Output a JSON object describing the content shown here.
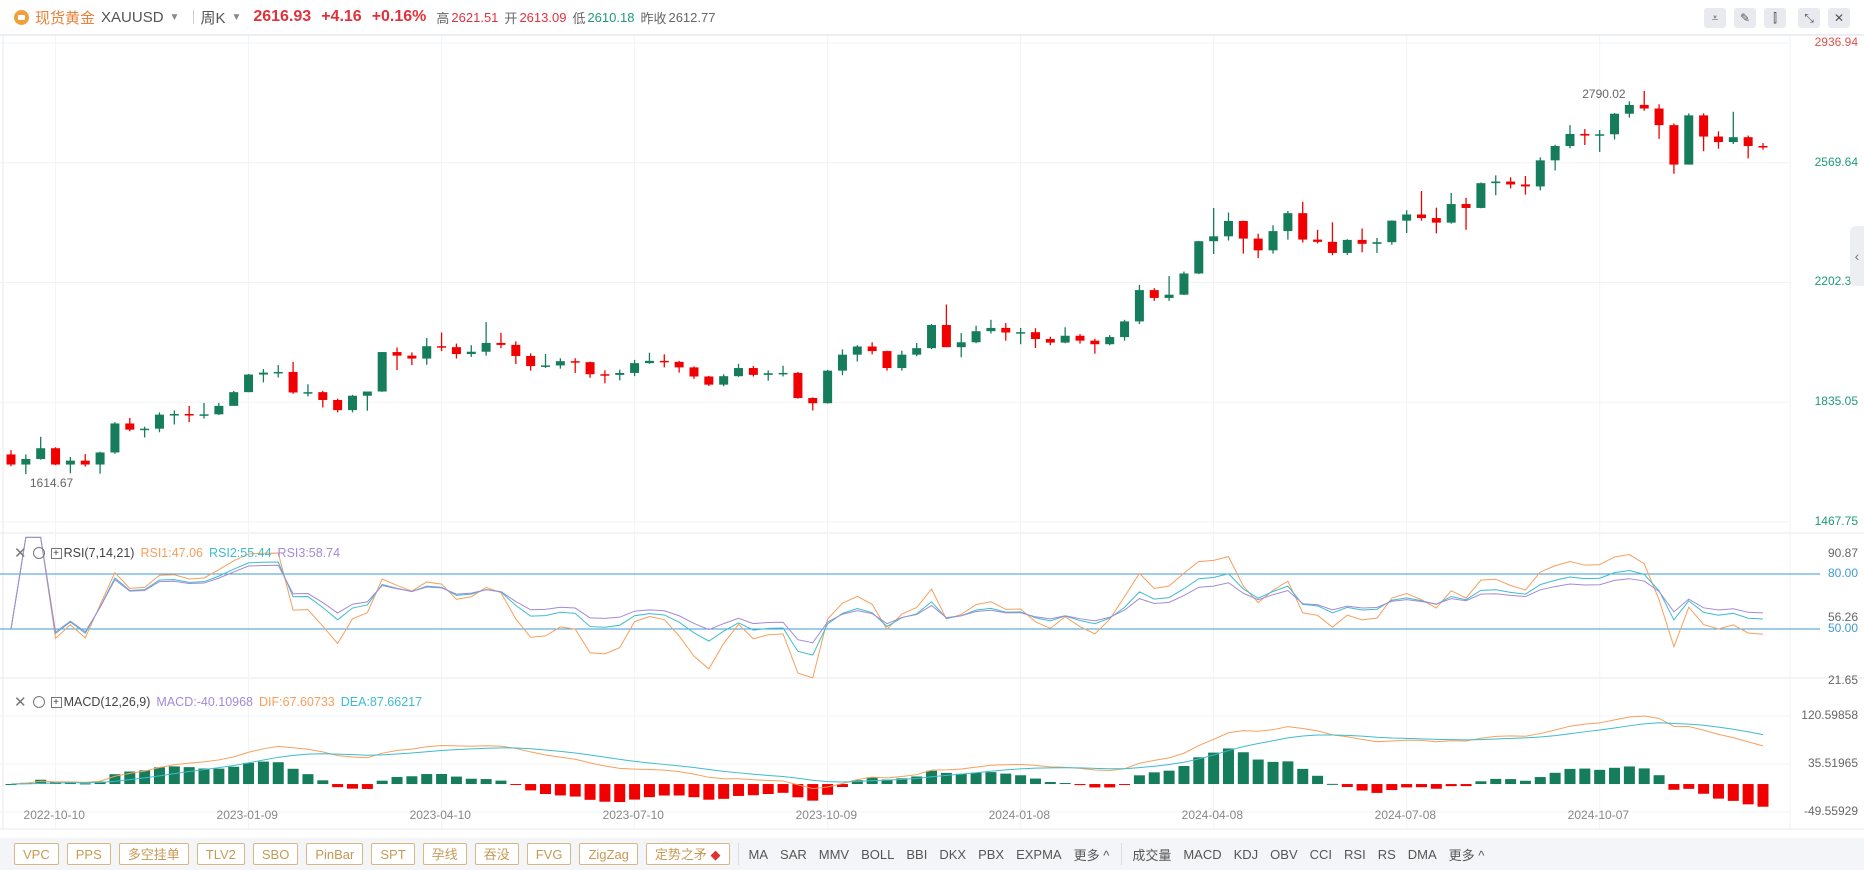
{
  "header": {
    "name_cn": "现货黄金",
    "symbol": "XAUUSD",
    "period": "周K",
    "price": "2616.93",
    "change": "+4.16",
    "change_pct": "+0.16%",
    "high_label": "高",
    "high": "2621.51",
    "open_label": "开",
    "open": "2613.09",
    "low_label": "低",
    "low": "2610.18",
    "prev_label": "昨收",
    "prev_close": "2612.77"
  },
  "tools": [
    {
      "icon": "indicator-line-icon",
      "glyph": "⩡"
    },
    {
      "icon": "pencil-icon",
      "glyph": "✎"
    },
    {
      "icon": "candlestick-icon",
      "glyph": "⫿"
    },
    {
      "icon": "collapse-icon",
      "glyph": "⤡"
    },
    {
      "icon": "close-icon",
      "glyph": "✕"
    }
  ],
  "colors": {
    "up": "#157d5b",
    "down": "#f00000",
    "rsi1": "#f5a05e",
    "rsi2": "#3fbccc",
    "rsi3": "#a38ad6",
    "dif": "#f5a05e",
    "dea": "#3fbccc",
    "level": "#3d9bd6"
  },
  "rsi": {
    "title": "RSI(7,14,21)",
    "rsi1": "RSI1:47.06",
    "rsi2": "RSI2:55.44",
    "rsi3": "RSI3:58.74",
    "axis": [
      "90.87",
      "80.00",
      "56.26",
      "50.00",
      "21.65"
    ]
  },
  "macd": {
    "title": "MACD(12,26,9)",
    "macd": "MACD:-40.10968",
    "dif": "DIF:67.60733",
    "dea": "DEA:87.66217",
    "axis": [
      "120.59858",
      "35.51965",
      "-49.55929"
    ]
  },
  "chart_data": {
    "type": "candlestick",
    "price_axis": [
      "2936.94",
      "2569.64",
      "2202.35",
      "1835.05",
      "1467.75"
    ],
    "ylim": [
      1467.75,
      2936.94
    ],
    "x_ticks": [
      "2022-10-10",
      "2023-01-09",
      "2023-04-10",
      "2023-07-10",
      "2023-10-09",
      "2024-01-08",
      "2024-04-08",
      "2024-07-08",
      "2024-10-07"
    ],
    "max_label": "2790.02",
    "min_label": "1614.67",
    "rsi_levels": [
      80,
      50
    ],
    "candles_fields": [
      "date",
      "open",
      "high",
      "low",
      "close"
    ],
    "candles": [
      [
        "2022-09-19",
        1675,
        1688,
        1639,
        1644
      ],
      [
        "2022-09-26",
        1644,
        1675,
        1614.67,
        1661
      ],
      [
        "2022-10-03",
        1661,
        1729,
        1659,
        1694
      ],
      [
        "2022-10-10",
        1694,
        1697,
        1642,
        1644
      ],
      [
        "2022-10-17",
        1644,
        1667,
        1617,
        1656
      ],
      [
        "2022-10-24",
        1656,
        1676,
        1638,
        1644
      ],
      [
        "2022-10-31",
        1644,
        1683,
        1616,
        1681
      ],
      [
        "2022-11-07",
        1681,
        1774,
        1677,
        1770
      ],
      [
        "2022-11-14",
        1770,
        1787,
        1746,
        1751
      ],
      [
        "2022-11-21",
        1751,
        1760,
        1727,
        1754
      ],
      [
        "2022-11-28",
        1754,
        1804,
        1743,
        1797
      ],
      [
        "2022-12-05",
        1797,
        1810,
        1767,
        1799
      ],
      [
        "2022-12-12",
        1799,
        1824,
        1774,
        1795
      ],
      [
        "2022-12-19",
        1795,
        1833,
        1785,
        1798
      ],
      [
        "2022-12-26",
        1798,
        1833,
        1796,
        1824
      ],
      [
        "2023-01-02",
        1824,
        1870,
        1824,
        1866
      ],
      [
        "2023-01-09",
        1866,
        1922,
        1866,
        1920
      ],
      [
        "2023-01-16",
        1920,
        1937,
        1896,
        1926
      ],
      [
        "2023-01-23",
        1926,
        1949,
        1911,
        1928
      ],
      [
        "2023-01-30",
        1928,
        1959,
        1861,
        1865
      ],
      [
        "2023-02-06",
        1865,
        1890,
        1853,
        1866
      ],
      [
        "2023-02-13",
        1866,
        1870,
        1819,
        1842
      ],
      [
        "2023-02-20",
        1842,
        1846,
        1804,
        1811
      ],
      [
        "2023-02-27",
        1811,
        1858,
        1804,
        1855
      ],
      [
        "2023-03-06",
        1855,
        1868,
        1809,
        1868
      ],
      [
        "2023-03-13",
        1868,
        1989,
        1867,
        1989
      ],
      [
        "2023-03-20",
        1989,
        2003,
        1934,
        1978
      ],
      [
        "2023-03-27",
        1978,
        1988,
        1949,
        1969
      ],
      [
        "2023-04-03",
        1969,
        2032,
        1950,
        2007
      ],
      [
        "2023-04-10",
        2007,
        2049,
        1992,
        2004
      ],
      [
        "2023-04-17",
        2004,
        2015,
        1969,
        1983
      ],
      [
        "2023-04-24",
        1983,
        2010,
        1974,
        1990
      ],
      [
        "2023-05-01",
        1990,
        2081,
        1978,
        2017
      ],
      [
        "2023-05-08",
        2017,
        2048,
        2001,
        2011
      ],
      [
        "2023-05-15",
        2011,
        2022,
        1952,
        1977
      ],
      [
        "2023-05-22",
        1977,
        1985,
        1932,
        1946
      ],
      [
        "2023-05-29",
        1946,
        1983,
        1940,
        1948
      ],
      [
        "2023-06-05",
        1948,
        1970,
        1938,
        1961
      ],
      [
        "2023-06-12",
        1961,
        1970,
        1925,
        1958
      ],
      [
        "2023-06-19",
        1958,
        1960,
        1910,
        1921
      ],
      [
        "2023-06-26",
        1921,
        1933,
        1893,
        1919
      ],
      [
        "2023-07-03",
        1919,
        1935,
        1902,
        1925
      ],
      [
        "2023-07-10",
        1925,
        1965,
        1915,
        1955
      ],
      [
        "2023-07-17",
        1955,
        1987,
        1953,
        1962
      ],
      [
        "2023-07-24",
        1962,
        1982,
        1942,
        1959
      ],
      [
        "2023-07-31",
        1959,
        1962,
        1926,
        1942
      ],
      [
        "2023-08-07",
        1942,
        1945,
        1907,
        1914
      ],
      [
        "2023-08-14",
        1914,
        1916,
        1885,
        1889
      ],
      [
        "2023-08-21",
        1889,
        1921,
        1884,
        1915
      ],
      [
        "2023-08-28",
        1915,
        1953,
        1913,
        1940
      ],
      [
        "2023-09-04",
        1940,
        1946,
        1914,
        1919
      ],
      [
        "2023-09-11",
        1919,
        1933,
        1901,
        1924
      ],
      [
        "2023-09-18",
        1924,
        1947,
        1914,
        1925
      ],
      [
        "2023-09-25",
        1925,
        1928,
        1846,
        1848
      ],
      [
        "2023-10-02",
        1848,
        1850,
        1810,
        1832
      ],
      [
        "2023-10-09",
        1832,
        1934,
        1831,
        1932
      ],
      [
        "2023-10-16",
        1932,
        1997,
        1918,
        1981
      ],
      [
        "2023-10-23",
        1981,
        2010,
        1960,
        2006
      ],
      [
        "2023-10-30",
        2006,
        2019,
        1982,
        1992
      ],
      [
        "2023-11-06",
        1992,
        1993,
        1932,
        1940
      ],
      [
        "2023-11-13",
        1940,
        1993,
        1932,
        1981
      ],
      [
        "2023-11-20",
        1981,
        2017,
        1976,
        2001
      ],
      [
        "2023-11-27",
        2001,
        2075,
        1998,
        2072
      ],
      [
        "2023-12-04",
        2072,
        2135,
        2004,
        2004
      ],
      [
        "2023-12-11",
        2004,
        2047,
        1973,
        2019
      ],
      [
        "2023-12-18",
        2019,
        2070,
        2016,
        2053
      ],
      [
        "2023-12-25",
        2053,
        2088,
        2046,
        2063
      ],
      [
        "2024-01-01",
        2063,
        2078,
        2024,
        2049
      ],
      [
        "2024-01-08",
        2049,
        2063,
        2013,
        2050
      ],
      [
        "2024-01-15",
        2050,
        2062,
        2001,
        2029
      ],
      [
        "2024-01-22",
        2029,
        2036,
        2010,
        2018
      ],
      [
        "2024-01-29",
        2018,
        2065,
        2016,
        2039
      ],
      [
        "2024-02-05",
        2039,
        2044,
        2015,
        2024
      ],
      [
        "2024-02-12",
        2024,
        2030,
        1984,
        2013
      ],
      [
        "2024-02-19",
        2013,
        2041,
        2010,
        2035
      ],
      [
        "2024-02-26",
        2035,
        2088,
        2024,
        2083
      ],
      [
        "2024-03-04",
        2083,
        2195,
        2075,
        2179
      ],
      [
        "2024-03-11",
        2179,
        2185,
        2146,
        2155
      ],
      [
        "2024-03-18",
        2155,
        2222,
        2146,
        2165
      ],
      [
        "2024-03-25",
        2165,
        2236,
        2164,
        2230
      ],
      [
        "2024-04-01",
        2230,
        2330,
        2228,
        2329
      ],
      [
        "2024-04-08",
        2329,
        2431,
        2290,
        2344
      ],
      [
        "2024-04-15",
        2344,
        2417,
        2331,
        2391
      ],
      [
        "2024-04-22",
        2391,
        2392,
        2291,
        2337
      ],
      [
        "2024-04-29",
        2337,
        2352,
        2277,
        2301
      ],
      [
        "2024-05-06",
        2301,
        2378,
        2291,
        2360
      ],
      [
        "2024-05-13",
        2360,
        2422,
        2334,
        2415
      ],
      [
        "2024-05-20",
        2415,
        2450,
        2325,
        2334
      ],
      [
        "2024-05-27",
        2334,
        2364,
        2322,
        2327
      ],
      [
        "2024-06-03",
        2327,
        2387,
        2286,
        2293
      ],
      [
        "2024-06-10",
        2293,
        2335,
        2287,
        2333
      ],
      [
        "2024-06-17",
        2333,
        2368,
        2295,
        2321
      ],
      [
        "2024-06-24",
        2321,
        2339,
        2293,
        2326
      ],
      [
        "2024-07-01",
        2326,
        2393,
        2318,
        2392
      ],
      [
        "2024-07-08",
        2392,
        2424,
        2354,
        2411
      ],
      [
        "2024-07-15",
        2411,
        2483,
        2392,
        2400
      ],
      [
        "2024-07-22",
        2400,
        2432,
        2353,
        2386
      ],
      [
        "2024-07-29",
        2386,
        2477,
        2383,
        2443
      ],
      [
        "2024-08-05",
        2443,
        2462,
        2364,
        2431
      ],
      [
        "2024-08-12",
        2431,
        2509,
        2430,
        2507
      ],
      [
        "2024-08-19",
        2507,
        2531,
        2470,
        2512
      ],
      [
        "2024-08-26",
        2512,
        2525,
        2491,
        2503
      ],
      [
        "2024-09-02",
        2503,
        2529,
        2472,
        2497
      ],
      [
        "2024-09-09",
        2497,
        2586,
        2485,
        2577
      ],
      [
        "2024-09-16",
        2577,
        2625,
        2546,
        2621
      ],
      [
        "2024-09-23",
        2621,
        2685,
        2614,
        2658
      ],
      [
        "2024-09-30",
        2658,
        2673,
        2624,
        2653
      ],
      [
        "2024-10-07",
        2653,
        2670,
        2603,
        2657
      ],
      [
        "2024-10-14",
        2657,
        2722,
        2641,
        2720
      ],
      [
        "2024-10-21",
        2720,
        2758,
        2708,
        2747
      ],
      [
        "2024-10-28",
        2747,
        2790.02,
        2729,
        2736
      ],
      [
        "2024-11-04",
        2736,
        2749,
        2643,
        2685
      ],
      [
        "2024-11-11",
        2685,
        2690,
        2536,
        2564
      ],
      [
        "2024-11-18",
        2564,
        2721,
        2564,
        2715
      ],
      [
        "2024-11-25",
        2715,
        2721,
        2605,
        2650
      ],
      [
        "2024-12-02",
        2650,
        2666,
        2613,
        2633
      ],
      [
        "2024-12-09",
        2633,
        2726,
        2627,
        2648
      ],
      [
        "2024-12-16",
        2648,
        2653,
        2583,
        2621
      ],
      [
        "2024-12-23",
        2621,
        2630,
        2610,
        2616.93
      ]
    ]
  },
  "footer": {
    "patterns": [
      "VPC",
      "PPS",
      "多空挂单",
      "TLV2",
      "SBO",
      "PinBar",
      "SPT",
      "孕线",
      "吞没",
      "FVG",
      "ZigZag",
      "定势之矛"
    ],
    "main_indicators": [
      "MA",
      "SAR",
      "MMV",
      "BOLL",
      "BBI",
      "DKX",
      "PBX",
      "EXPMA",
      "更多 ^"
    ],
    "sub_indicators": [
      "成交量",
      "MACD",
      "KDJ",
      "OBV",
      "CCI",
      "RSI",
      "RS",
      "DMA",
      "更多 ^"
    ]
  }
}
